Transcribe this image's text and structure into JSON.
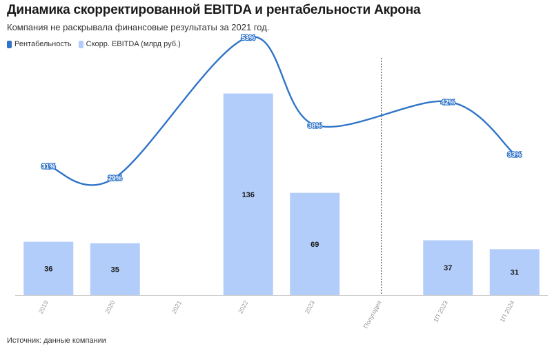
{
  "title": "Динамика скорректированной EBITDA и рентабельности Акрона",
  "subtitle": "Компания не раскрывала финансовые результаты за 2021 год.",
  "legend": {
    "line_label": "Рентабельность",
    "bar_label": "Скорр. EBITDA (млрд руб.)"
  },
  "source": "Источник: данные компании",
  "colors": {
    "line": "#2f74c8",
    "bar": "#b3cdfa",
    "divider": "#333333"
  },
  "chart_data": {
    "type": "bar",
    "categories": [
      "2019",
      "2020",
      "2021",
      "2022",
      "2023",
      "Полугодия",
      "1П 2023",
      "1П 2024"
    ],
    "series": [
      {
        "name": "Скорр. EBITDA (млрд руб.)",
        "type": "bar",
        "values": [
          36,
          35,
          null,
          136,
          69,
          null,
          37,
          31
        ],
        "labels": [
          "36",
          "35",
          "",
          "136",
          "69",
          "",
          "37",
          "31"
        ]
      },
      {
        "name": "Рентабельность",
        "type": "line",
        "values": [
          31,
          29,
          null,
          53,
          38,
          null,
          42,
          33
        ],
        "labels": [
          "31%",
          "29%",
          "",
          "53%",
          "38%",
          "",
          "42%",
          "33%"
        ]
      }
    ],
    "divider_after_category": "Полугодия",
    "grid": false,
    "legend_position": "top-left"
  }
}
